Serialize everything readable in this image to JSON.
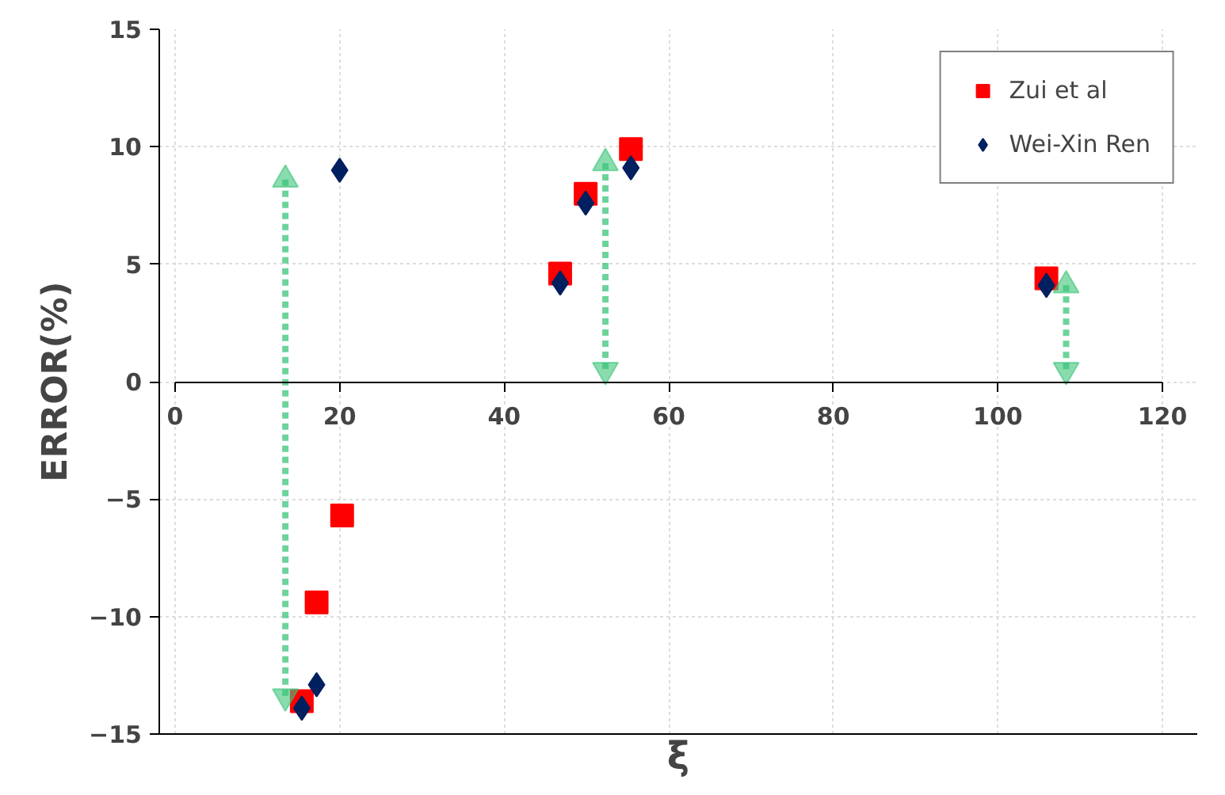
{
  "chart_data": {
    "type": "scatter",
    "xlabel": "ξ",
    "ylabel": "ERROR(%)",
    "xlim": [
      0,
      120
    ],
    "xticks": [
      0,
      20,
      40,
      60,
      80,
      100,
      120
    ],
    "ylim": [
      -15,
      15
    ],
    "yticks": [
      -15,
      -10,
      -5,
      0,
      5,
      10,
      15
    ],
    "grid": true,
    "legend": "top right",
    "series": [
      {
        "name": "Zui et al",
        "type": "scatter",
        "marker": "square",
        "color": "#ff0000",
        "x": [
          15.4,
          17.2,
          20.3,
          46.8,
          49.9,
          55.4,
          105.9
        ],
        "values": [
          -13.6,
          -9.4,
          -5.7,
          4.6,
          8.0,
          9.9,
          4.4
        ]
      },
      {
        "name": "Wei-Xin Ren",
        "type": "scatter",
        "marker": "diamond",
        "color": "#002060",
        "x": [
          15.4,
          17.2,
          20.0,
          46.8,
          49.9,
          55.4,
          105.9
        ],
        "values": [
          -13.9,
          -12.9,
          9.0,
          4.2,
          7.6,
          9.1,
          4.1
        ]
      },
      {
        "type": "line",
        "line_style": "dotted",
        "marker": "triangle",
        "color": "#3cc47a",
        "x": [
          13.4,
          13.4
        ],
        "values": [
          8.6,
          -13.4
        ]
      },
      {
        "type": "line",
        "line_style": "dotted",
        "marker": "triangle",
        "color": "#3cc47a",
        "x": [
          52.3,
          52.3
        ],
        "values": [
          9.3,
          0.5
        ]
      },
      {
        "type": "line",
        "line_style": "dotted",
        "marker": "triangle",
        "color": "#3cc47a",
        "x": [
          108.3,
          108.3
        ],
        "values": [
          4.1,
          0.5
        ]
      }
    ]
  }
}
